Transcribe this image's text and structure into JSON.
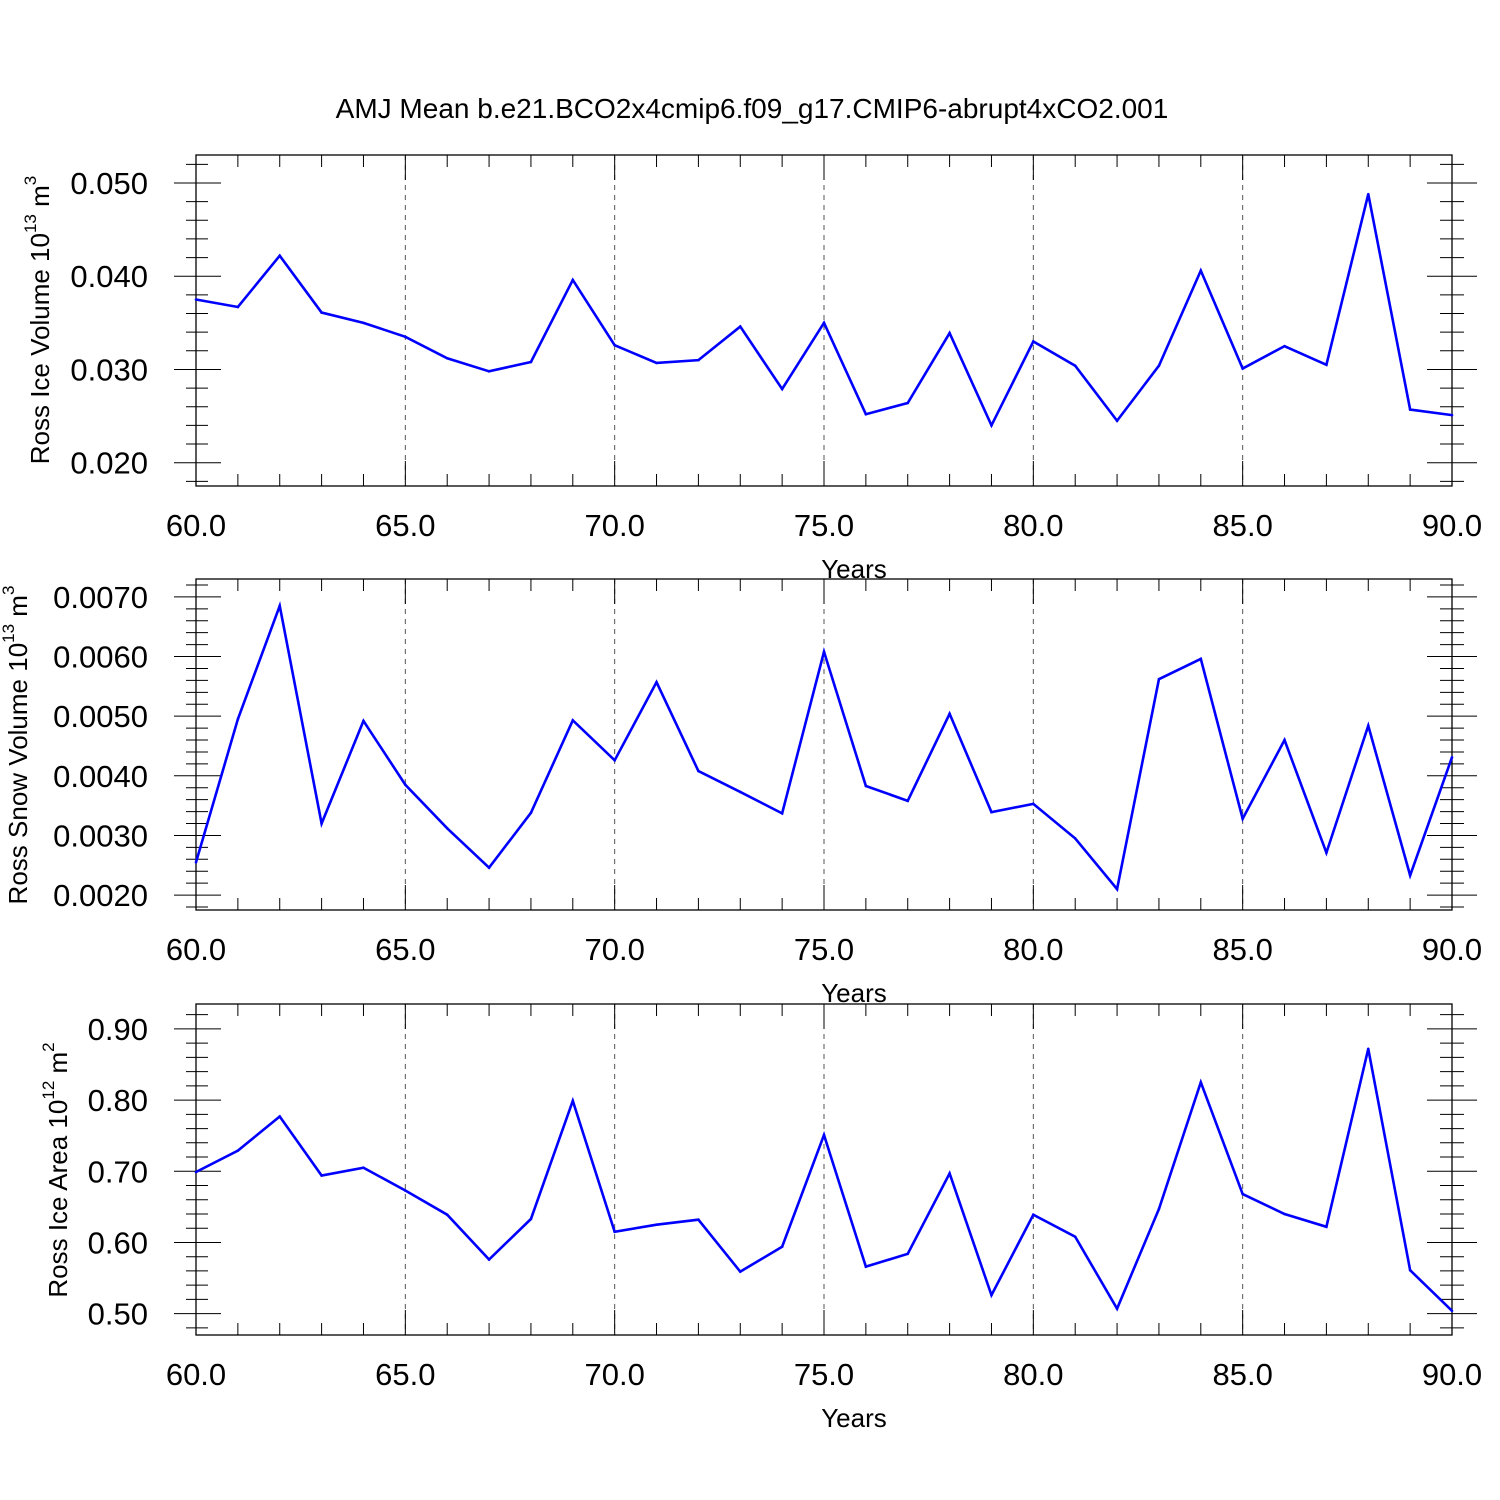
{
  "title": "AMJ Mean b.e21.BCO2x4cmip6.f09_g17.CMIP6-abrupt4xCO2.001",
  "colors": {
    "series": "#0000ff",
    "axes": "#000000",
    "grid": "#555555"
  },
  "chart_data": [
    {
      "type": "line",
      "xlabel": "Years",
      "ylabel": "Ross Ice Volume 10",
      "ylabel_exp": "13",
      "ylabel_unit": " m",
      "ylabel_unit_exp": "3",
      "xlim": [
        60,
        90
      ],
      "ylim": [
        0.0175,
        0.053
      ],
      "xticks": [
        60,
        65,
        70,
        75,
        80,
        85,
        90
      ],
      "xtick_labels": [
        "60.0",
        "65.0",
        "70.0",
        "75.0",
        "80.0",
        "85.0",
        "90.0"
      ],
      "yticks": [
        0.02,
        0.03,
        0.04,
        0.05
      ],
      "ytick_labels": [
        "0.020",
        "0.030",
        "0.040",
        "0.050"
      ],
      "grid": "dashed vertical at major x ticks",
      "x": [
        60,
        61,
        62,
        63,
        64,
        65,
        66,
        67,
        68,
        69,
        70,
        71,
        72,
        73,
        74,
        75,
        76,
        77,
        78,
        79,
        80,
        81,
        82,
        83,
        84,
        85,
        86,
        87,
        88,
        89,
        90
      ],
      "series": [
        {
          "values": [
            0.0375,
            0.0367,
            0.0422,
            0.0361,
            0.035,
            0.0335,
            0.0312,
            0.0298,
            0.0308,
            0.0396,
            0.0326,
            0.0307,
            0.031,
            0.0346,
            0.0279,
            0.035,
            0.0252,
            0.0264,
            0.0339,
            0.024,
            0.033,
            0.0304,
            0.0245,
            0.0304,
            0.0406,
            0.0301,
            0.0325,
            0.0305,
            0.0488,
            0.0257,
            0.0251
          ]
        }
      ]
    },
    {
      "type": "line",
      "xlabel": "Years",
      "ylabel": "Ross Snow Volume 10",
      "ylabel_exp": "13",
      "ylabel_unit": " m",
      "ylabel_unit_exp": "3",
      "xlim": [
        60,
        90
      ],
      "ylim": [
        0.00175,
        0.0073
      ],
      "xticks": [
        60,
        65,
        70,
        75,
        80,
        85,
        90
      ],
      "xtick_labels": [
        "60.0",
        "65.0",
        "70.0",
        "75.0",
        "80.0",
        "85.0",
        "90.0"
      ],
      "yticks": [
        0.002,
        0.003,
        0.004,
        0.005,
        0.006,
        0.007
      ],
      "ytick_labels": [
        "0.0020",
        "0.0030",
        "0.0040",
        "0.0050",
        "0.0060",
        "0.0070"
      ],
      "grid": "dashed vertical at major x ticks",
      "x": [
        60,
        61,
        62,
        63,
        64,
        65,
        66,
        67,
        68,
        69,
        70,
        71,
        72,
        73,
        74,
        75,
        76,
        77,
        78,
        79,
        80,
        81,
        82,
        83,
        84,
        85,
        86,
        87,
        88,
        89,
        90
      ],
      "series": [
        {
          "values": [
            0.00255,
            0.00495,
            0.00685,
            0.0032,
            0.00492,
            0.00385,
            0.00312,
            0.00246,
            0.00338,
            0.00493,
            0.00426,
            0.00557,
            0.00408,
            0.00373,
            0.00337,
            0.00608,
            0.00383,
            0.00358,
            0.00504,
            0.00339,
            0.00353,
            0.00295,
            0.0021,
            0.00562,
            0.00596,
            0.00328,
            0.0046,
            0.00271,
            0.00484,
            0.00233,
            0.00431
          ]
        }
      ]
    },
    {
      "type": "line",
      "xlabel": "Years",
      "ylabel": "Ross Ice Area 10",
      "ylabel_exp": "12",
      "ylabel_unit": " m",
      "ylabel_unit_exp": "2",
      "xlim": [
        60,
        90
      ],
      "ylim": [
        0.47,
        0.935
      ],
      "xticks": [
        60,
        65,
        70,
        75,
        80,
        85,
        90
      ],
      "xtick_labels": [
        "60.0",
        "65.0",
        "70.0",
        "75.0",
        "80.0",
        "85.0",
        "90.0"
      ],
      "yticks": [
        0.5,
        0.6,
        0.7,
        0.8,
        0.9
      ],
      "ytick_labels": [
        "0.50",
        "0.60",
        "0.70",
        "0.80",
        "0.90"
      ],
      "grid": "dashed vertical at major x ticks",
      "x": [
        60,
        61,
        62,
        63,
        64,
        65,
        66,
        67,
        68,
        69,
        70,
        71,
        72,
        73,
        74,
        75,
        76,
        77,
        78,
        79,
        80,
        81,
        82,
        83,
        84,
        85,
        86,
        87,
        88,
        89,
        90
      ],
      "series": [
        {
          "values": [
            0.699,
            0.729,
            0.777,
            0.694,
            0.705,
            0.673,
            0.639,
            0.576,
            0.633,
            0.799,
            0.615,
            0.625,
            0.632,
            0.559,
            0.594,
            0.751,
            0.566,
            0.584,
            0.697,
            0.526,
            0.639,
            0.608,
            0.507,
            0.647,
            0.825,
            0.668,
            0.64,
            0.622,
            0.872,
            0.561,
            0.504
          ]
        }
      ]
    }
  ]
}
